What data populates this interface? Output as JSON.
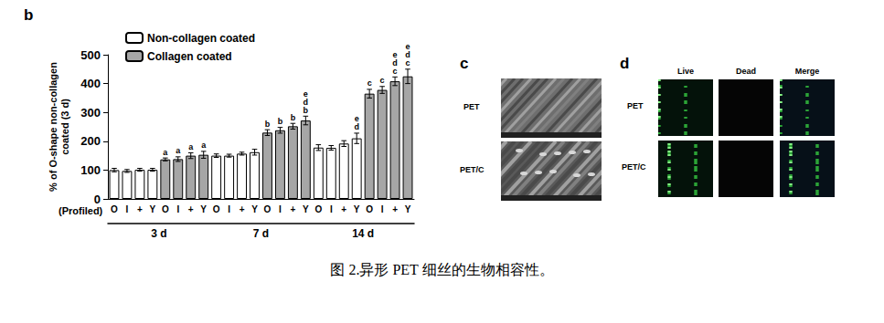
{
  "chart_data": {
    "type": "bar",
    "panel_label": "b",
    "categories": [
      "O",
      "I",
      "+",
      "Y",
      "O",
      "I",
      "+",
      "Y",
      "O",
      "I",
      "+",
      "Y",
      "O",
      "I",
      "+",
      "Y",
      "O",
      "I",
      "+",
      "Y",
      "O",
      "I",
      "+",
      "Y"
    ],
    "groups": [
      "3 d",
      "7 d",
      "14 d"
    ],
    "x_label": "(Profiled)",
    "y_label": "% of O-shape non-collagen\ncoated (3 d)",
    "ylim": [
      0,
      500
    ],
    "yticks": [
      0,
      100,
      200,
      300,
      400,
      500
    ],
    "legend": "top-left",
    "series": [
      {
        "name": "Non-collagen coated",
        "color": "#ffffff",
        "values": [
          100,
          97,
          101,
          101,
          null,
          null,
          null,
          null,
          150,
          150,
          157,
          162,
          null,
          null,
          null,
          null,
          178,
          177,
          192,
          210,
          null,
          null,
          null,
          null
        ],
        "errors": [
          6,
          5,
          5,
          5,
          null,
          null,
          null,
          null,
          6,
          5,
          5,
          10,
          null,
          null,
          null,
          null,
          10,
          8,
          10,
          18,
          null,
          null,
          null,
          null
        ],
        "letters": [
          null,
          null,
          null,
          null,
          null,
          null,
          null,
          null,
          null,
          null,
          null,
          null,
          null,
          null,
          null,
          null,
          null,
          null,
          null,
          "e\nd",
          null,
          null,
          null,
          null
        ]
      },
      {
        "name": "Collagen coated",
        "color": "#a6a6a6",
        "values": [
          null,
          null,
          null,
          null,
          137,
          138,
          150,
          153,
          null,
          null,
          null,
          null,
          230,
          238,
          252,
          272,
          null,
          null,
          null,
          null,
          365,
          378,
          408,
          425
        ],
        "errors": [
          null,
          null,
          null,
          null,
          5,
          8,
          10,
          12,
          null,
          null,
          null,
          null,
          10,
          10,
          10,
          15,
          null,
          null,
          null,
          null,
          15,
          12,
          15,
          25
        ],
        "letters": [
          null,
          null,
          null,
          null,
          "a",
          "a",
          "a",
          "a",
          null,
          null,
          null,
          null,
          "b",
          "b",
          "b",
          "e\nd\nb",
          null,
          null,
          null,
          null,
          "c",
          "c",
          "e\nd\nc",
          "e\nd\nc"
        ]
      }
    ]
  },
  "panel_c": {
    "label": "c",
    "rows": [
      "PET",
      "PET/C"
    ]
  },
  "panel_d": {
    "label": "d",
    "columns": [
      "Live",
      "Dead",
      "Merge"
    ],
    "rows": [
      "PET",
      "PET/C"
    ]
  },
  "caption": "图 2.异形 PET 细丝的生物相容性。"
}
